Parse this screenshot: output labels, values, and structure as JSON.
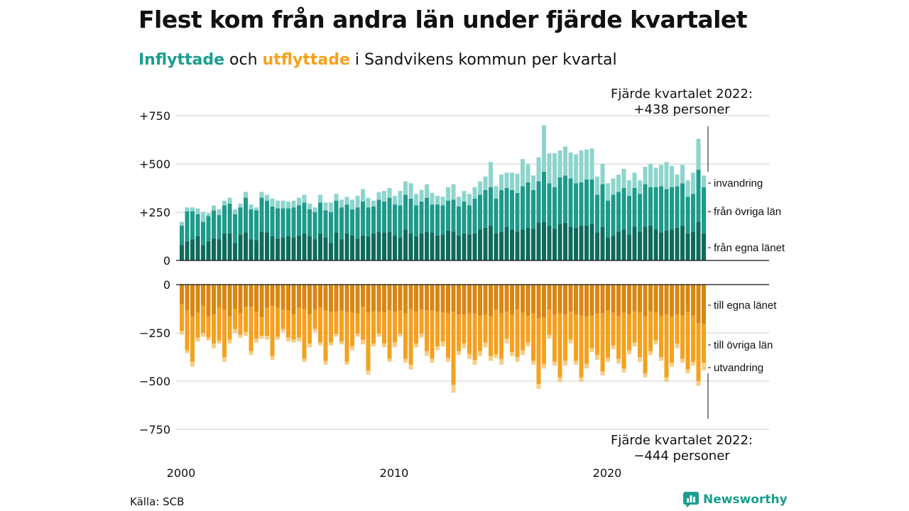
{
  "title": "Flest kom från andra län under fjärde kvartalet",
  "subtitle": {
    "in_word": "Inflyttade",
    "and_word": "och",
    "out_word": "utflyttade",
    "rest": "i Sandvikens kommun per kvartal"
  },
  "source": "Källa: SCB",
  "brand": {
    "name": "Newsworthy",
    "icon": "newsworthy-logo-icon"
  },
  "colors": {
    "in_own": "#0e6b5c",
    "in_other": "#1c9a8a",
    "in_abroad": "#8dd5cc",
    "out_own": "#d98710",
    "out_other": "#f4a11d",
    "out_abroad": "#f8cd84",
    "grid": "#dddddd",
    "axis": "#111111"
  },
  "chart_data": {
    "type": "bar",
    "stacked": true,
    "x_start": "2000Q1",
    "x_ticks": [
      "2000",
      "2010",
      "2020"
    ],
    "top_panel": {
      "y_ticks": [
        "+750",
        "+500",
        "+250",
        "0"
      ],
      "ylim": [
        0,
        750
      ],
      "series": [
        {
          "name": "från egna länet",
          "values": [
            80,
            100,
            110,
            125,
            80,
            100,
            115,
            110,
            140,
            140,
            90,
            135,
            145,
            110,
            105,
            150,
            145,
            125,
            115,
            120,
            125,
            120,
            130,
            140,
            125,
            110,
            140,
            120,
            90,
            145,
            110,
            140,
            130,
            115,
            130,
            125,
            140,
            150,
            145,
            150,
            130,
            120,
            160,
            140,
            125,
            140,
            150,
            145,
            130,
            135,
            155,
            150,
            130,
            140,
            135,
            140,
            160,
            170,
            180,
            140,
            150,
            175,
            160,
            150,
            160,
            170,
            165,
            195,
            200,
            180,
            165,
            190,
            195,
            175,
            170,
            180,
            180,
            190,
            145,
            175,
            120,
            130,
            150,
            160,
            135,
            175,
            150,
            175,
            180,
            160,
            145,
            155,
            160,
            170,
            180,
            140,
            150,
            200,
            140
          ]
        },
        {
          "name": "från övriga län",
          "values": [
            100,
            155,
            145,
            115,
            120,
            130,
            145,
            125,
            145,
            155,
            150,
            140,
            180,
            155,
            155,
            175,
            165,
            155,
            155,
            150,
            145,
            155,
            155,
            160,
            140,
            140,
            160,
            140,
            160,
            165,
            165,
            150,
            135,
            160,
            175,
            150,
            140,
            165,
            160,
            175,
            160,
            165,
            180,
            180,
            160,
            165,
            175,
            145,
            160,
            150,
            155,
            165,
            150,
            165,
            150,
            180,
            180,
            195,
            200,
            180,
            215,
            200,
            205,
            200,
            225,
            235,
            200,
            215,
            260,
            220,
            215,
            240,
            245,
            250,
            230,
            225,
            240,
            230,
            195,
            220,
            190,
            210,
            205,
            215,
            200,
            200,
            195,
            220,
            200,
            220,
            240,
            215,
            220,
            215,
            220,
            190,
            195,
            270,
            240
          ]
        },
        {
          "name": "invandring",
          "values": [
            20,
            20,
            20,
            30,
            50,
            15,
            25,
            30,
            25,
            30,
            25,
            20,
            30,
            25,
            15,
            30,
            30,
            40,
            40,
            40,
            35,
            35,
            40,
            40,
            30,
            25,
            40,
            40,
            50,
            35,
            40,
            40,
            50,
            60,
            65,
            50,
            30,
            40,
            55,
            50,
            45,
            75,
            70,
            80,
            60,
            60,
            70,
            60,
            45,
            45,
            70,
            80,
            50,
            55,
            60,
            60,
            70,
            70,
            130,
            65,
            80,
            80,
            90,
            100,
            140,
            95,
            75,
            125,
            240,
            155,
            175,
            140,
            150,
            135,
            150,
            165,
            155,
            160,
            95,
            105,
            90,
            85,
            90,
            100,
            80,
            80,
            70,
            90,
            120,
            100,
            110,
            140,
            110,
            60,
            95,
            85,
            110,
            160,
            60
          ]
        }
      ],
      "labels": [
        "invandring",
        "från övriga län",
        "från egna länet"
      ],
      "annotation": {
        "line1": "Fjärde kvartalet 2022:",
        "line2": "+438 personer",
        "value": 438
      }
    },
    "bottom_panel": {
      "y_ticks": [
        "0",
        "−250",
        "−500",
        "−750"
      ],
      "ylim": [
        -750,
        0
      ],
      "series": [
        {
          "name": "till egna länet",
          "values": [
            -100,
            -135,
            -165,
            -145,
            -110,
            -165,
            -155,
            -120,
            -130,
            -165,
            -125,
            -150,
            -115,
            -115,
            -140,
            -170,
            -120,
            -110,
            -120,
            -130,
            -135,
            -155,
            -120,
            -125,
            -155,
            -130,
            -120,
            -135,
            -140,
            -140,
            -135,
            -140,
            -145,
            -150,
            -115,
            -145,
            -140,
            -140,
            -145,
            -135,
            -140,
            -135,
            -150,
            -125,
            -140,
            -130,
            -135,
            -135,
            -140,
            -145,
            -150,
            -140,
            -155,
            -155,
            -150,
            -150,
            -160,
            -155,
            -165,
            -130,
            -150,
            -140,
            -155,
            -130,
            -145,
            -160,
            -150,
            -175,
            -170,
            -130,
            -155,
            -150,
            -155,
            -140,
            -155,
            -160,
            -165,
            -160,
            -150,
            -150,
            -135,
            -145,
            -160,
            -145,
            -155,
            -140,
            -145,
            -165,
            -140,
            -145,
            -160,
            -155,
            -165,
            -155,
            -160,
            -140,
            -160,
            -200,
            -205
          ]
        },
        {
          "name": "till övriga län",
          "values": [
            -140,
            -205,
            -235,
            -130,
            -140,
            -110,
            -150,
            -170,
            -245,
            -120,
            -105,
            -110,
            -130,
            -230,
            -140,
            -95,
            -145,
            -260,
            -150,
            -100,
            -140,
            -130,
            -155,
            -260,
            -150,
            -100,
            -180,
            -260,
            -160,
            -115,
            -160,
            -260,
            -175,
            -105,
            -170,
            -300,
            -165,
            -115,
            -160,
            -250,
            -160,
            -120,
            -235,
            -290,
            -165,
            -125,
            -210,
            -250,
            -180,
            -150,
            -230,
            -380,
            -190,
            -150,
            -210,
            -240,
            -185,
            -145,
            -205,
            -230,
            -235,
            -140,
            -195,
            -245,
            -195,
            -140,
            -245,
            -340,
            -240,
            -130,
            -245,
            -330,
            -240,
            -145,
            -240,
            -320,
            -245,
            -170,
            -215,
            -300,
            -245,
            -170,
            -225,
            -290,
            -185,
            -160,
            -230,
            -295,
            -205,
            -145,
            -215,
            -325,
            -240,
            -150,
            -225,
            -300,
            -240,
            -300,
            -200
          ]
        },
        {
          "name": "utvandring",
          "values": [
            -20,
            -15,
            -25,
            -20,
            -20,
            -15,
            -25,
            -15,
            -25,
            -20,
            -20,
            -15,
            -20,
            -20,
            -20,
            -15,
            -20,
            -20,
            -15,
            -15,
            -20,
            -15,
            -20,
            -15,
            -20,
            -15,
            -15,
            -20,
            -15,
            -15,
            -15,
            -15,
            -20,
            -15,
            -25,
            -20,
            -15,
            -15,
            -20,
            -15,
            -25,
            -15,
            -20,
            -25,
            -20,
            -20,
            -25,
            -20,
            -20,
            -25,
            -20,
            -40,
            -20,
            -25,
            -25,
            -25,
            -25,
            -25,
            -25,
            -20,
            -30,
            -25,
            -20,
            -25,
            -25,
            -20,
            -20,
            -25,
            -25,
            -20,
            -20,
            -25,
            -25,
            -20,
            -20,
            -25,
            -25,
            -20,
            -25,
            -20,
            -20,
            -20,
            -25,
            -20,
            -20,
            -20,
            -25,
            -20,
            -20,
            -20,
            -20,
            -25,
            -20,
            -25,
            -20,
            -20,
            -20,
            -25,
            -39
          ]
        }
      ],
      "labels": [
        "till egna länet",
        "till övriga län",
        "utvandring"
      ],
      "annotation": {
        "line1": "Fjärde kvartalet 2022:",
        "line2": "−444 personer",
        "value": -444
      }
    },
    "grid": true,
    "legend": "inline-right"
  }
}
